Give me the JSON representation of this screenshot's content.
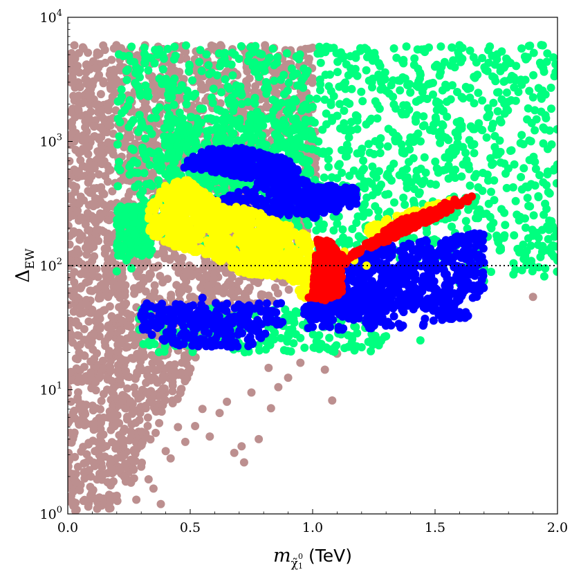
{
  "chart_data": {
    "type": "scatter",
    "xlabel": {
      "symbol": "m",
      "subscript": "χ̃",
      "subscript_super": "0",
      "subscript_sub": "1",
      "unit": "(TeV)"
    },
    "ylabel": {
      "symbol": "Δ",
      "subscript": "EW"
    },
    "xlim": [
      0.0,
      2.0
    ],
    "ylim": [
      1,
      10000
    ],
    "yscale": "log",
    "grid": false,
    "legend": "none",
    "x_ticks": [
      {
        "value": 0.0,
        "label": "0.0"
      },
      {
        "value": 0.5,
        "label": "0.5"
      },
      {
        "value": 1.0,
        "label": "1.0"
      },
      {
        "value": 1.5,
        "label": "1.5"
      },
      {
        "value": 2.0,
        "label": "2.0"
      }
    ],
    "y_ticks": [
      {
        "value": 1,
        "base": "10",
        "exp": "0"
      },
      {
        "value": 10,
        "base": "10",
        "exp": "1"
      },
      {
        "value": 100,
        "base": "10",
        "exp": "2"
      },
      {
        "value": 1000,
        "base": "10",
        "exp": "3"
      },
      {
        "value": 10000,
        "base": "10",
        "exp": "4"
      }
    ],
    "reference_lines": [
      {
        "axis": "y",
        "value": 100,
        "style": "dotted",
        "color": "#000000"
      }
    ],
    "series": [
      {
        "color": "#bc8f8f",
        "regions": [
          {
            "poly": [
              [
                0.0,
                1
              ],
              [
                0.0,
                6000
              ],
              [
                1.0,
                6000
              ],
              [
                1.02,
                300
              ],
              [
                0.9,
                60
              ],
              [
                0.75,
                40
              ],
              [
                0.55,
                25
              ],
              [
                0.45,
                8
              ],
              [
                0.35,
                4
              ],
              [
                0.25,
                1.5
              ],
              [
                0.15,
                1
              ]
            ],
            "count": 2600
          }
        ],
        "points": [
          [
            0.12,
            1.1
          ],
          [
            0.2,
            1.4
          ],
          [
            0.3,
            2.4
          ],
          [
            0.35,
            1.6
          ],
          [
            0.38,
            1.2
          ],
          [
            0.42,
            2.8
          ],
          [
            0.48,
            3.8
          ],
          [
            0.52,
            5.1
          ],
          [
            0.58,
            4.2
          ],
          [
            0.62,
            6.5
          ],
          [
            0.68,
            3.1
          ],
          [
            0.72,
            2.6
          ],
          [
            0.78,
            4.0
          ],
          [
            0.83,
            7.1
          ],
          [
            0.86,
            10.5
          ],
          [
            0.9,
            12.5
          ],
          [
            0.95,
            16.5
          ],
          [
            1.05,
            14.5
          ],
          [
            1.08,
            8.2
          ],
          [
            1.1,
            19.5
          ],
          [
            0.82,
            15
          ],
          [
            0.75,
            9.5
          ],
          [
            0.65,
            8
          ],
          [
            0.55,
            7
          ],
          [
            0.45,
            5
          ],
          [
            0.4,
            3.2
          ],
          [
            0.33,
            1.9
          ],
          [
            0.28,
            1.3
          ],
          [
            1.9,
            56
          ],
          [
            0.71,
            3.5
          ]
        ]
      },
      {
        "color": "#00ff7f",
        "regions": [
          {
            "poly": [
              [
                0.2,
                6000
              ],
              [
                2.0,
                6000
              ],
              [
                2.0,
                80
              ],
              [
                1.0,
                110
              ],
              [
                0.2,
                200
              ]
            ],
            "count": 1400
          },
          {
            "poly": [
              [
                0.2,
                120
              ],
              [
                0.35,
                120
              ],
              [
                0.35,
                300
              ],
              [
                0.2,
                300
              ]
            ],
            "count": 150
          },
          {
            "poly": [
              [
                0.28,
                20
              ],
              [
                1.3,
                20
              ],
              [
                1.3,
                45
              ],
              [
                0.28,
                45
              ]
            ],
            "count": 220
          },
          {
            "poly": [
              [
                0.4,
                400
              ],
              [
                1.0,
                400
              ],
              [
                1.0,
                1600
              ],
              [
                0.4,
                1600
              ]
            ],
            "count": 300
          }
        ],
        "points": [
          [
            0.2,
            90
          ],
          [
            0.22,
            120
          ],
          [
            0.26,
            95
          ],
          [
            0.24,
            110
          ],
          [
            1.6,
            72
          ],
          [
            1.7,
            75
          ],
          [
            1.82,
            85
          ],
          [
            1.95,
            95
          ],
          [
            2.0,
            110
          ],
          [
            1.44,
            25
          ],
          [
            1.3,
            27
          ],
          [
            1.2,
            22
          ],
          [
            0.9,
            28
          ]
        ]
      },
      {
        "color": "#0000ff",
        "regions": [
          {
            "poly": [
              [
                0.44,
                620
              ],
              [
                0.55,
                860
              ],
              [
                0.7,
                900
              ],
              [
                0.9,
                720
              ],
              [
                1.0,
                440
              ],
              [
                1.18,
                440
              ],
              [
                1.18,
                300
              ],
              [
                1.0,
                240
              ],
              [
                0.85,
                330
              ],
              [
                0.75,
                500
              ],
              [
                0.55,
                580
              ]
            ],
            "count": 520
          },
          {
            "poly": [
              [
                0.52,
                240
              ],
              [
                0.85,
                240
              ],
              [
                1.18,
                300
              ],
              [
                1.18,
                420
              ],
              [
                0.75,
                430
              ],
              [
                0.52,
                300
              ]
            ],
            "count": 200
          },
          {
            "poly": [
              [
                0.3,
                50
              ],
              [
                0.9,
                50
              ],
              [
                0.9,
                55
              ],
              [
                0.88,
                35
              ],
              [
                0.75,
                22
              ],
              [
                0.45,
                22
              ],
              [
                0.3,
                30
              ]
            ],
            "count": 260
          },
          {
            "poly": [
              [
                0.96,
                40
              ],
              [
                1.7,
                55
              ],
              [
                1.7,
                190
              ],
              [
                1.3,
                145
              ],
              [
                1.08,
                100
              ],
              [
                0.98,
                60
              ]
            ],
            "count": 600
          },
          {
            "poly": [
              [
                0.98,
                30
              ],
              [
                1.5,
                32
              ],
              [
                1.68,
                40
              ],
              [
                1.55,
                60
              ],
              [
                1.1,
                60
              ],
              [
                0.98,
                42
              ]
            ],
            "count": 200
          }
        ],
        "points": [
          [
            0.55,
            55
          ],
          [
            0.3,
            40
          ],
          [
            0.85,
            35
          ]
        ]
      },
      {
        "color": "#ffff00",
        "regions": [
          {
            "poly": [
              [
                0.33,
                300
              ],
              [
                0.4,
                450
              ],
              [
                0.47,
                520
              ],
              [
                0.54,
                420
              ],
              [
                0.63,
                320
              ],
              [
                0.78,
                270
              ],
              [
                0.98,
                180
              ],
              [
                1.02,
                110
              ],
              [
                1.02,
                68
              ],
              [
                0.96,
                52
              ],
              [
                0.93,
                70
              ],
              [
                0.9,
                80
              ],
              [
                0.72,
                85
              ],
              [
                0.55,
                125
              ],
              [
                0.43,
                140
              ],
              [
                0.33,
                180
              ]
            ],
            "count": 900
          },
          {
            "poly": [
              [
                1.2,
                200
              ],
              [
                1.38,
                270
              ],
              [
                1.55,
                340
              ],
              [
                1.62,
                320
              ],
              [
                1.45,
                240
              ],
              [
                1.25,
                170
              ]
            ],
            "count": 120
          }
        ],
        "points": [
          [
            1.22,
            100
          ],
          [
            1.17,
            110
          ],
          [
            1.13,
            130
          ]
        ]
      },
      {
        "color": "#ff0000",
        "regions": [
          {
            "poly": [
              [
                1.07,
                52
              ],
              [
                1.12,
                60
              ],
              [
                1.12,
                90
              ],
              [
                1.16,
                125
              ],
              [
                1.35,
                230
              ],
              [
                1.52,
                300
              ],
              [
                1.66,
                360
              ],
              [
                1.64,
                330
              ],
              [
                1.5,
                240
              ],
              [
                1.35,
                170
              ],
              [
                1.2,
                130
              ],
              [
                1.14,
                110
              ],
              [
                1.07,
                160
              ],
              [
                1.02,
                165
              ],
              [
                1.0,
                60
              ],
              [
                0.98,
                55
              ]
            ],
            "count": 560
          }
        ],
        "points": [
          [
            1.65,
            360
          ],
          [
            1.63,
            350
          ],
          [
            1.58,
            340
          ],
          [
            1.54,
            320
          ]
        ]
      }
    ]
  }
}
